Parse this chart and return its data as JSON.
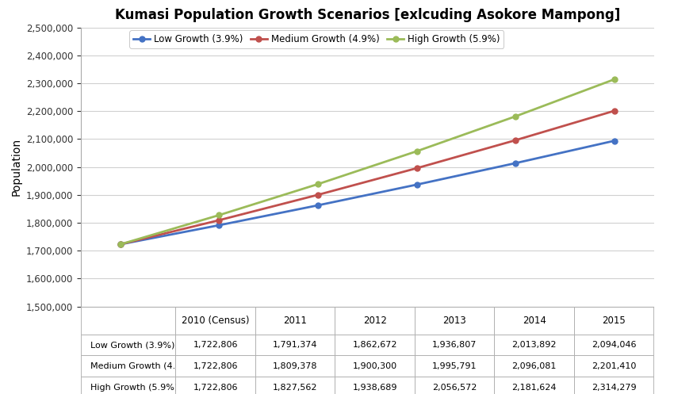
{
  "title": "Kumasi Population Growth Scenarios [exlcuding Asokore Mampong]",
  "ylabel": "Population",
  "years": [
    "2010 (Census)",
    "2011",
    "2012",
    "2013",
    "2014",
    "2015"
  ],
  "x_numeric": [
    0,
    1,
    2,
    3,
    4,
    5
  ],
  "low_growth": [
    1722806,
    1791374,
    1862672,
    1936807,
    2013892,
    2094046
  ],
  "medium_growth": [
    1722806,
    1809378,
    1900300,
    1995791,
    2096081,
    2201410
  ],
  "high_growth": [
    1722806,
    1827562,
    1938689,
    2056572,
    2181624,
    2314279
  ],
  "low_color": "#4472C4",
  "medium_color": "#C0504D",
  "high_color": "#9BBB59",
  "low_label": "Low Growth (3.9%)",
  "medium_label": "Medium Growth (4.9%)",
  "high_label": "High Growth (5.9%)",
  "ylim_min": 1500000,
  "ylim_max": 2500000,
  "ytick_step": 100000,
  "background_color": "#FFFFFF"
}
